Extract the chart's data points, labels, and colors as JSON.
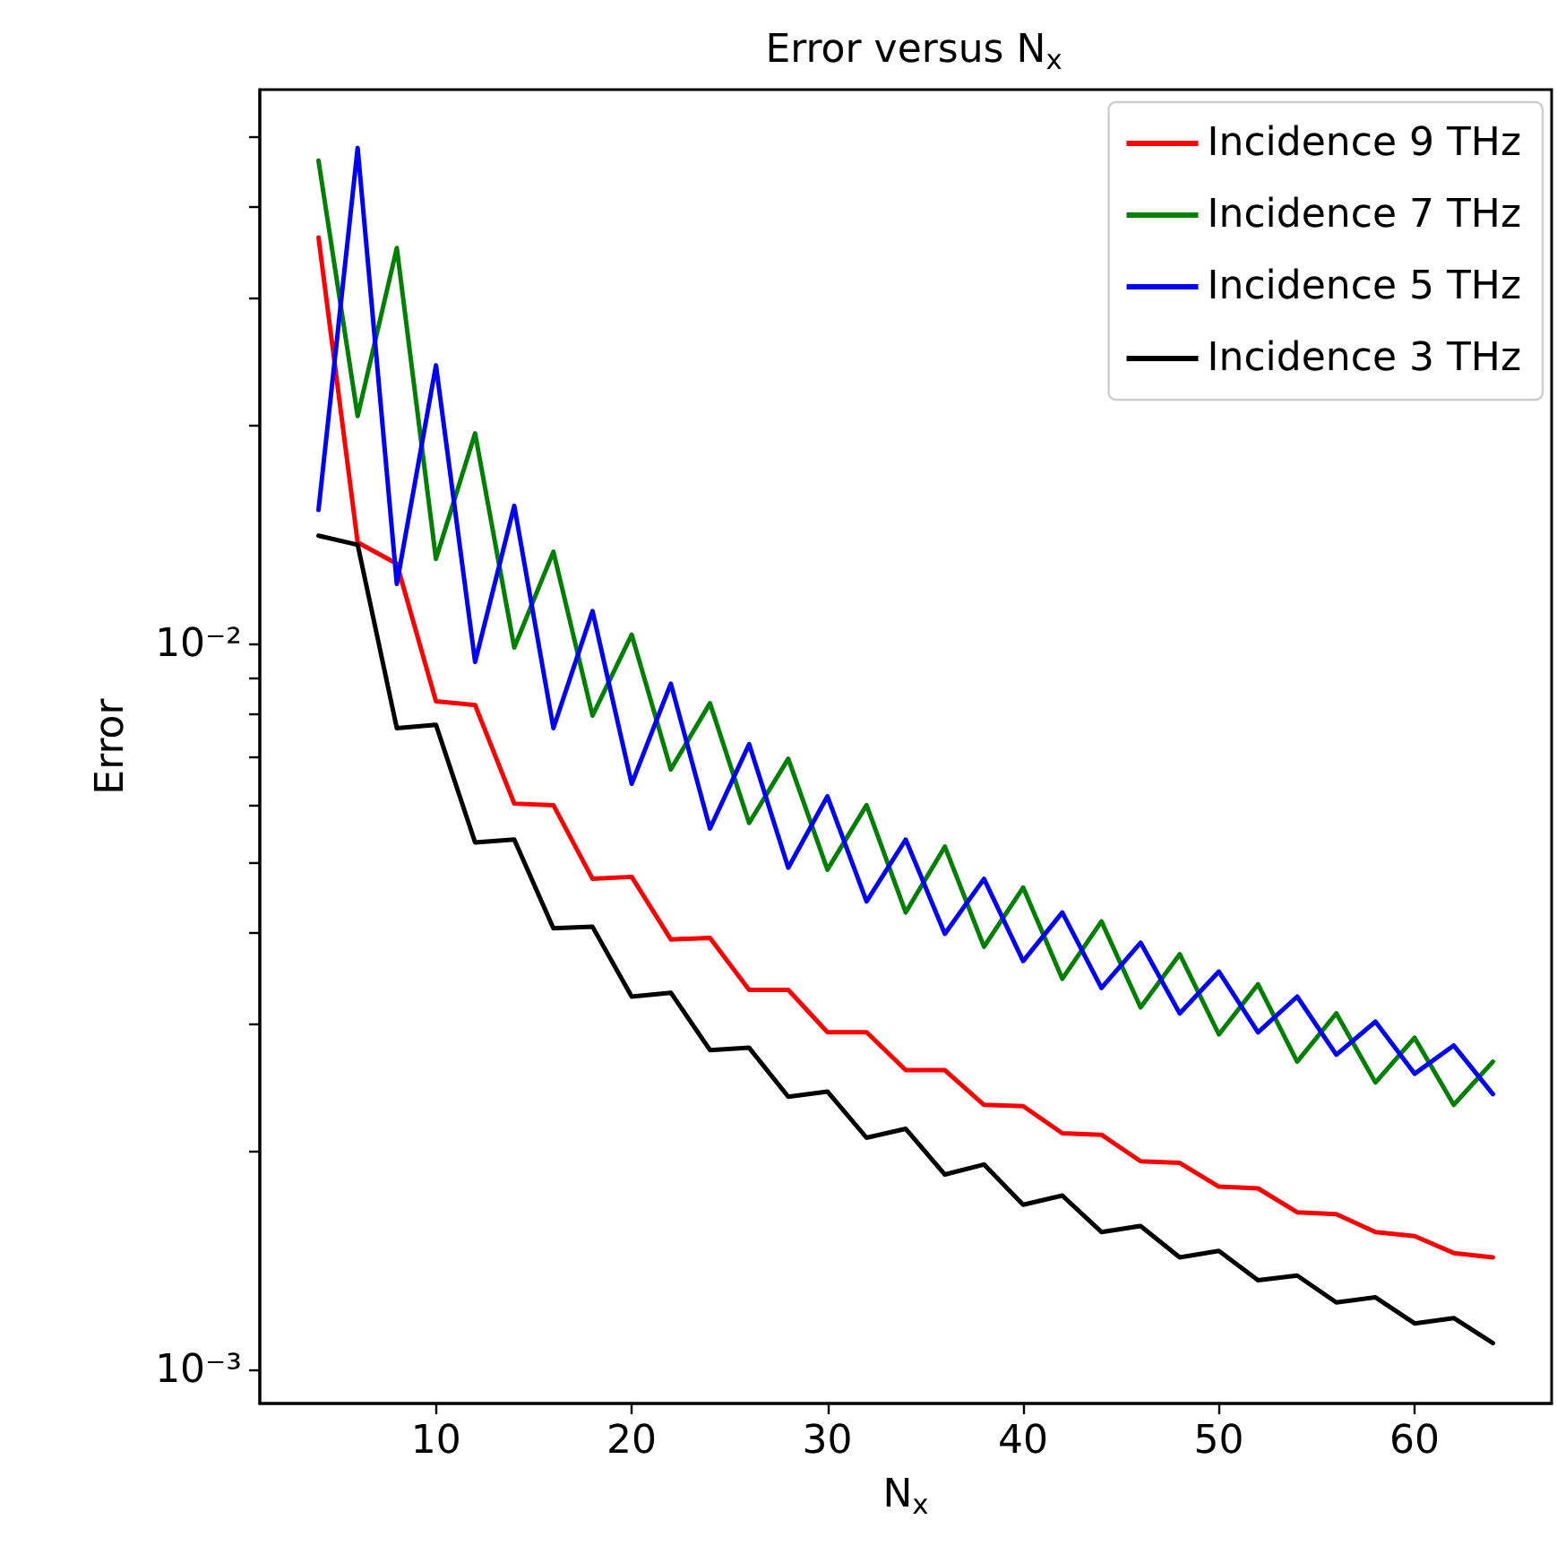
{
  "chart_data": {
    "type": "line",
    "title": "Error versus N$_{x}$",
    "xlabel": "N$_{x}$",
    "ylabel": "Error",
    "x": [
      4,
      6,
      8,
      10,
      12,
      14,
      16,
      18,
      20,
      22,
      24,
      26,
      28,
      30,
      32,
      34,
      36,
      38,
      40,
      42,
      44,
      46,
      48,
      50,
      52,
      54,
      56,
      58,
      60,
      62,
      64
    ],
    "series": [
      {
        "name": "Incidence 9 THz",
        "color": "#ff0000",
        "values": [
          0.0363,
          0.0138,
          0.0129,
          0.00834,
          0.00824,
          0.00603,
          0.006,
          0.00475,
          0.00478,
          0.00392,
          0.00394,
          0.00334,
          0.00334,
          0.00292,
          0.00292,
          0.00259,
          0.00259,
          0.00232,
          0.00231,
          0.00212,
          0.00211,
          0.00194,
          0.00193,
          0.00179,
          0.00178,
          0.00165,
          0.00164,
          0.00155,
          0.00153,
          0.00145,
          0.00143
        ]
      },
      {
        "name": "Incidence 7 THz",
        "color": "#008000",
        "values": [
          0.0463,
          0.0206,
          0.0351,
          0.0131,
          0.0195,
          0.00989,
          0.0134,
          0.00797,
          0.0103,
          0.00672,
          0.00829,
          0.00567,
          0.00695,
          0.00489,
          0.006,
          0.00427,
          0.00526,
          0.00383,
          0.00462,
          0.00346,
          0.00415,
          0.00316,
          0.00374,
          0.0029,
          0.0034,
          0.00266,
          0.0031,
          0.00249,
          0.00287,
          0.00232,
          0.00266
        ]
      },
      {
        "name": "Incidence 5 THz",
        "color": "#0000ff",
        "values": [
          0.0153,
          0.0482,
          0.0121,
          0.0242,
          0.00945,
          0.0155,
          0.00766,
          0.0111,
          0.00642,
          0.00882,
          0.00557,
          0.00728,
          0.00492,
          0.00617,
          0.00442,
          0.00538,
          0.00399,
          0.00475,
          0.00366,
          0.00427,
          0.00336,
          0.00388,
          0.0031,
          0.00354,
          0.00292,
          0.00327,
          0.00272,
          0.00302,
          0.00256,
          0.0028,
          0.0024
        ]
      },
      {
        "name": "Incidence 3 THz",
        "color": "#000000",
        "values": [
          0.0141,
          0.0137,
          0.00766,
          0.00774,
          0.00533,
          0.00538,
          0.00406,
          0.00408,
          0.00327,
          0.00331,
          0.00276,
          0.00278,
          0.00238,
          0.00242,
          0.00209,
          0.00215,
          0.00186,
          0.00192,
          0.00169,
          0.00174,
          0.00155,
          0.00158,
          0.00143,
          0.00146,
          0.00133,
          0.00135,
          0.00124,
          0.00126,
          0.00116,
          0.00118,
          0.00109
        ]
      }
    ],
    "xlim": [
      1,
      67
    ],
    "xticks": [
      10,
      20,
      30,
      40,
      50,
      60
    ],
    "ylim": [
      0.0009,
      0.058
    ],
    "log": "y",
    "yticks": [
      {
        "value": 0.001,
        "label": "10⁻³"
      },
      {
        "value": 0.002,
        "label": null
      },
      {
        "value": 0.003,
        "label": null
      },
      {
        "value": 0.004,
        "label": null
      },
      {
        "value": 0.005,
        "label": null
      },
      {
        "value": 0.006,
        "label": null
      },
      {
        "value": 0.007,
        "label": null
      },
      {
        "value": 0.008,
        "label": null
      },
      {
        "value": 0.009,
        "label": null
      },
      {
        "value": 0.01,
        "label": "10⁻²"
      },
      {
        "value": 0.02,
        "label": null
      },
      {
        "value": 0.03,
        "label": null
      },
      {
        "value": 0.04,
        "label": null
      },
      {
        "value": 0.05,
        "label": null
      }
    ],
    "legend": "top right",
    "grid": false,
    "marker": "none",
    "line_style": "solid"
  }
}
